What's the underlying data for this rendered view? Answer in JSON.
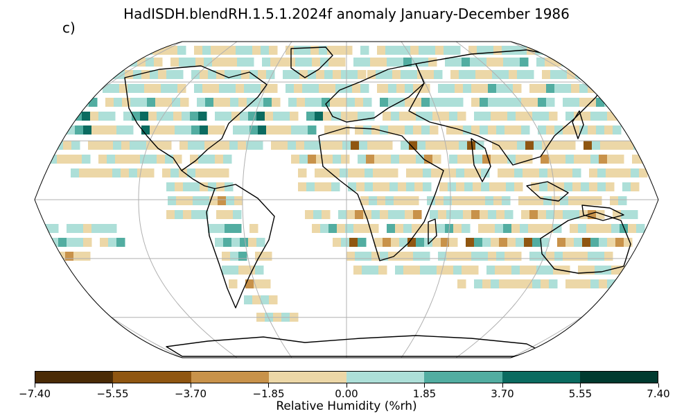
{
  "title": "HadISDH.blendRH.1.5.1.2024f anomaly January-December 1986",
  "panel_label": "c)",
  "colorbar": {
    "label": "Relative Humidity (%rh)",
    "ticks": [
      "−7.40",
      "−5.55",
      "−3.70",
      "−1.85",
      "0.00",
      "1.85",
      "3.70",
      "5.55",
      "7.40"
    ],
    "colors": [
      "#4a2b06",
      "#8f5611",
      "#c8924a",
      "#ecd7a7",
      "#addfd8",
      "#52ada1",
      "#0b6b60",
      "#003a2f"
    ]
  },
  "map": {
    "projection": "Robinson",
    "gridlines": true,
    "colors": {
      "gridline": "#b0b0b0",
      "coast": "#000000",
      "cell_colors_by_class": [
        "#4a2b06",
        "#8f5611",
        "#c8924a",
        "#ecd7a7",
        "#addfd8",
        "#52ada1",
        "#0b6b60",
        "#003a2f"
      ]
    }
  }
}
